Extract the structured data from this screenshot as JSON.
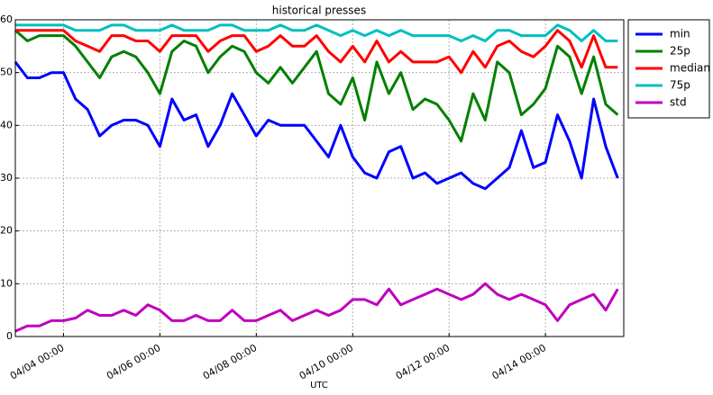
{
  "chart_data": {
    "type": "line",
    "title": "historical presses",
    "x_label": "UTC",
    "x": [
      "04/03 00:00",
      "04/03 06:00",
      "04/03 12:00",
      "04/03 18:00",
      "04/04 00:00",
      "04/04 06:00",
      "04/04 12:00",
      "04/04 18:00",
      "04/05 00:00",
      "04/05 06:00",
      "04/05 12:00",
      "04/05 18:00",
      "04/06 00:00",
      "04/06 06:00",
      "04/06 12:00",
      "04/06 18:00",
      "04/07 00:00",
      "04/07 06:00",
      "04/07 12:00",
      "04/07 18:00",
      "04/08 00:00",
      "04/08 06:00",
      "04/08 12:00",
      "04/08 18:00",
      "04/09 00:00",
      "04/09 06:00",
      "04/09 12:00",
      "04/09 18:00",
      "04/10 00:00",
      "04/10 06:00",
      "04/10 12:00",
      "04/10 18:00",
      "04/11 00:00",
      "04/11 06:00",
      "04/11 12:00",
      "04/11 18:00",
      "04/12 00:00",
      "04/12 06:00",
      "04/12 12:00",
      "04/12 18:00",
      "04/13 00:00",
      "04/13 06:00",
      "04/13 12:00",
      "04/13 18:00",
      "04/14 00:00",
      "04/14 06:00",
      "04/14 12:00",
      "04/14 18:00",
      "04/15 00:00",
      "04/15 06:00",
      "04/15 12:00"
    ],
    "series": [
      {
        "name": "min",
        "color": "#0000ff",
        "values": [
          52,
          49,
          49,
          50,
          50,
          45,
          43,
          38,
          40,
          41,
          41,
          40,
          36,
          45,
          41,
          42,
          36,
          40,
          46,
          42,
          38,
          41,
          40,
          40,
          40,
          37,
          34,
          40,
          34,
          31,
          30,
          35,
          36,
          30,
          31,
          29,
          30,
          31,
          29,
          28,
          30,
          32,
          39,
          32,
          33,
          42,
          37,
          30,
          45,
          36,
          30
        ]
      },
      {
        "name": "25p",
        "color": "#008000",
        "values": [
          58,
          56,
          57,
          57,
          57,
          55,
          52,
          49,
          53,
          54,
          53,
          50,
          46,
          54,
          56,
          55,
          50,
          53,
          55,
          54,
          50,
          48,
          51,
          48,
          51,
          54,
          46,
          44,
          49,
          41,
          52,
          46,
          50,
          43,
          45,
          44,
          41,
          37,
          46,
          41,
          52,
          50,
          42,
          44,
          47,
          55,
          53,
          46,
          53,
          44,
          42
        ]
      },
      {
        "name": "median",
        "color": "#ff0000",
        "values": [
          58,
          58,
          58,
          58,
          58,
          56,
          55,
          54,
          57,
          57,
          56,
          56,
          54,
          57,
          57,
          57,
          54,
          56,
          57,
          57,
          54,
          55,
          57,
          55,
          55,
          57,
          54,
          52,
          55,
          52,
          56,
          52,
          54,
          52,
          52,
          52,
          53,
          50,
          54,
          51,
          55,
          56,
          54,
          53,
          55,
          58,
          56,
          51,
          57,
          51,
          51
        ]
      },
      {
        "name": "75p",
        "color": "#00bfbf",
        "values": [
          59,
          59,
          59,
          59,
          59,
          58,
          58,
          58,
          59,
          59,
          58,
          58,
          58,
          59,
          58,
          58,
          58,
          59,
          59,
          58,
          58,
          58,
          59,
          58,
          58,
          59,
          58,
          57,
          58,
          57,
          58,
          57,
          58,
          57,
          57,
          57,
          57,
          56,
          57,
          56,
          58,
          58,
          57,
          57,
          57,
          59,
          58,
          56,
          58,
          56,
          56
        ]
      },
      {
        "name": "std",
        "color": "#bf00bf",
        "values": [
          1,
          2,
          2,
          3,
          3,
          3.5,
          5,
          4,
          4,
          5,
          4,
          6,
          5,
          3,
          3,
          4,
          3,
          3,
          5,
          3,
          3,
          4,
          5,
          3,
          4,
          5,
          4,
          5,
          7,
          7,
          6,
          9,
          6,
          7,
          8,
          9,
          8,
          7,
          8,
          10,
          8,
          7,
          8,
          7,
          6,
          3,
          6,
          7,
          8,
          5,
          9
        ]
      }
    ],
    "xlim": [
      "04/03 00:00",
      "04/15 15:00"
    ],
    "xticks": [
      "04/04 00:00",
      "04/06 00:00",
      "04/08 00:00",
      "04/10 00:00",
      "04/12 00:00",
      "04/14 00:00"
    ],
    "ylim": [
      0,
      60
    ],
    "yticks": [
      0,
      10,
      20,
      30,
      40,
      50,
      60
    ],
    "grid": true,
    "legend": "outside upper right"
  }
}
